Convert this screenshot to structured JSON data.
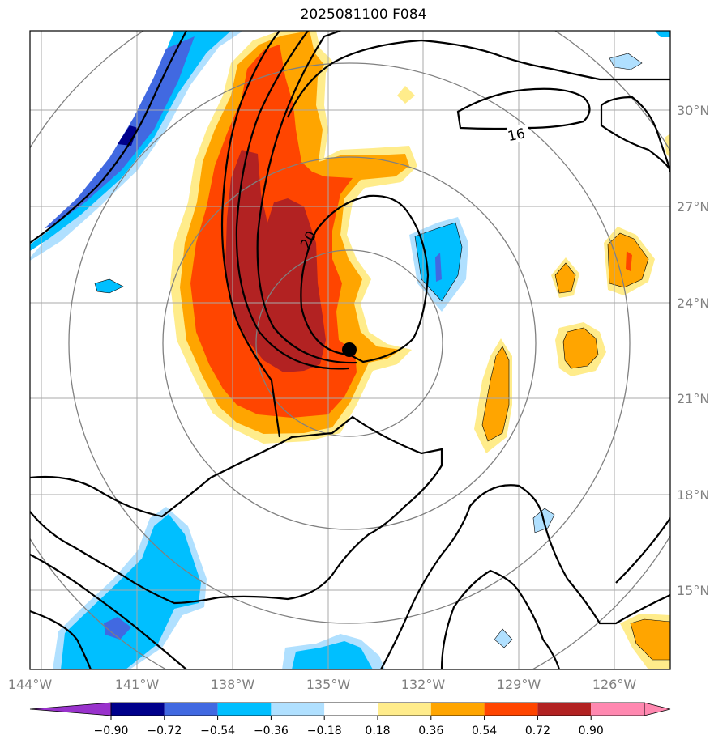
{
  "title": "2025081100 F084",
  "map": {
    "lon_labels": [
      "144°W",
      "141°W",
      "138°W",
      "135°W",
      "132°W",
      "129°W",
      "126°W"
    ],
    "lat_labels": [
      "30°N",
      "27°N",
      "24°N",
      "21°N",
      "18°N",
      "15°N"
    ],
    "contour_labels": [
      "16",
      "20"
    ],
    "storm_center": "storm-center-dot"
  },
  "colorbar": {
    "ticks": [
      "−0.90",
      "−0.72",
      "−0.54",
      "−0.36",
      "−0.18",
      "0.18",
      "0.36",
      "0.54",
      "0.72",
      "0.90"
    ],
    "colors": [
      "#9932cc",
      "#00008b",
      "#4169e1",
      "#00bfff",
      "#b0e0ff",
      "#ffffff",
      "#ffec8b",
      "#ffa500",
      "#ff4500",
      "#b22222",
      "#ff88b0"
    ]
  },
  "colors": {
    "neg_light": "#b0e0ff",
    "neg_mid": "#00bfff",
    "neg_strong": "#4169e1",
    "neg_max": "#00008b",
    "pos_light": "#ffec8b",
    "pos_mid": "#ffa500",
    "pos_strong": "#ff4500",
    "pos_max": "#b22222",
    "grid": "#a9a9a9",
    "rings": "#808080"
  }
}
